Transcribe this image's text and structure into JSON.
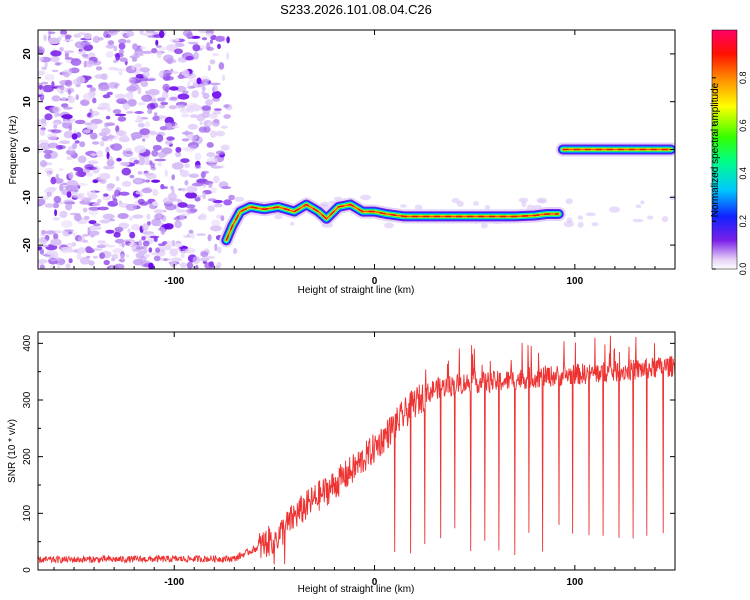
{
  "title": "S233.2026.101.08.04.C26",
  "chart_data": [
    {
      "type": "heatmap",
      "xlabel": "Height of straight line (km)",
      "ylabel": "Frequency (Hz)",
      "xlim": [
        -168,
        150
      ],
      "ylim": [
        -25,
        25
      ],
      "xticks": [
        -100,
        0,
        100
      ],
      "yticks": [
        -20,
        -10,
        0,
        10,
        20
      ],
      "colorbar": {
        "label": "Normalized spectral amplitude",
        "range": [
          0,
          1
        ],
        "ticks": [
          "0.0",
          "0.2",
          "0.4",
          "0.6",
          "0.8"
        ]
      },
      "ridge_segments": [
        {
          "points": [
            [
              -74,
              -19
            ],
            [
              -71,
              -16
            ],
            [
              -67,
              -13
            ],
            [
              -62,
              -12
            ],
            [
              -55,
              -12.5
            ],
            [
              -48,
              -12
            ],
            [
              -40,
              -13
            ],
            [
              -34,
              -11.5
            ],
            [
              -28,
              -13
            ],
            [
              -24,
              -14.5
            ],
            [
              -18,
              -12
            ],
            [
              -12,
              -11.5
            ],
            [
              -6,
              -13
            ],
            [
              0,
              -13
            ],
            [
              6,
              -13.5
            ],
            [
              15,
              -14
            ],
            [
              30,
              -14
            ],
            [
              50,
              -14
            ],
            [
              70,
              -14
            ],
            [
              80,
              -13.8
            ],
            [
              86,
              -13.5
            ],
            [
              92,
              -13.5
            ]
          ]
        },
        {
          "points": [
            [
              94,
              0
            ],
            [
              120,
              0
            ],
            [
              148,
              0
            ]
          ]
        }
      ],
      "noise_region": {
        "xmin": -168,
        "xmax": -68
      }
    },
    {
      "type": "line",
      "xlabel": "Height of straight line (km)",
      "ylabel": "SNR (10 * v/v)",
      "xlim": [
        -168,
        150
      ],
      "ylim": [
        0,
        420
      ],
      "xticks": [
        -100,
        0,
        100
      ],
      "yticks": [
        0,
        100,
        200,
        300,
        400
      ],
      "series": [
        {
          "name": "SNR",
          "color": "#ee3333",
          "control_points": [
            [
              -168,
              18
            ],
            [
              -70,
              20
            ],
            [
              -58,
              40
            ],
            [
              -48,
              60
            ],
            [
              -40,
              95
            ],
            [
              -30,
              125
            ],
            [
              -20,
              150
            ],
            [
              -10,
              180
            ],
            [
              0,
              215
            ],
            [
              10,
              255
            ],
            [
              20,
              295
            ],
            [
              30,
              320
            ],
            [
              45,
              330
            ],
            [
              60,
              332
            ],
            [
              80,
              340
            ],
            [
              100,
              345
            ],
            [
              120,
              350
            ],
            [
              150,
              360
            ]
          ],
          "dips": [
            -50,
            -45,
            10,
            18,
            25,
            33,
            40,
            48,
            55,
            62,
            70,
            77,
            84,
            92,
            99,
            107,
            114,
            122,
            129,
            136,
            144
          ]
        }
      ]
    }
  ]
}
